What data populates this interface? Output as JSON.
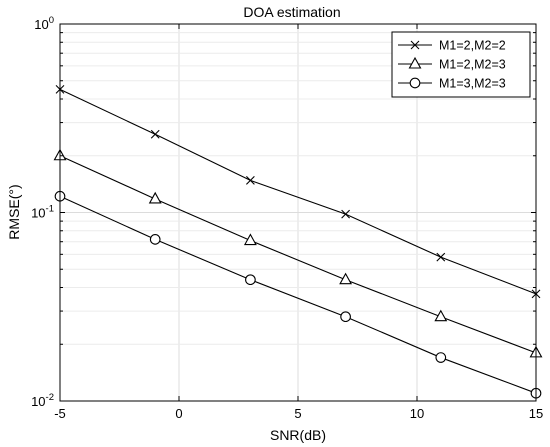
{
  "chart_data": {
    "type": "line",
    "title": "DOA estimation",
    "xlabel": "SNR(dB)",
    "ylabel": "RMSE(°)",
    "x": [
      -5,
      -1,
      3,
      7,
      11,
      15
    ],
    "xlim": [
      -5,
      15
    ],
    "ylim": [
      0.01,
      1
    ],
    "yscale": "log",
    "grid": true,
    "legend_position": "top-right",
    "x_ticks": [
      "-5",
      "0",
      "5",
      "10",
      "15"
    ],
    "y_ticks": [
      {
        "base": "10",
        "exp": "0"
      },
      {
        "base": "10",
        "exp": "-1"
      },
      {
        "base": "10",
        "exp": "-2"
      }
    ],
    "series": [
      {
        "name": "M1=2,M2=2",
        "marker": "x",
        "values": [
          0.45,
          0.26,
          0.148,
          0.098,
          0.058,
          0.037
        ]
      },
      {
        "name": "M1=2,M2=3",
        "marker": "triangle",
        "values": [
          0.2,
          0.118,
          0.071,
          0.044,
          0.028,
          0.018
        ]
      },
      {
        "name": "M1=3,M2=3",
        "marker": "circle",
        "values": [
          0.122,
          0.072,
          0.044,
          0.028,
          0.017,
          0.011
        ]
      }
    ]
  }
}
